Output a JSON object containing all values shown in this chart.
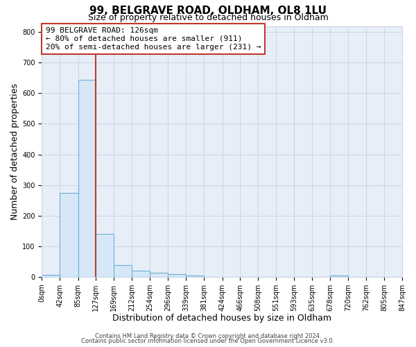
{
  "title": "99, BELGRAVE ROAD, OLDHAM, OL8 1LU",
  "subtitle": "Size of property relative to detached houses in Oldham",
  "xlabel": "Distribution of detached houses by size in Oldham",
  "ylabel": "Number of detached properties",
  "bar_edges": [
    0,
    42,
    85,
    127,
    169,
    212,
    254,
    296,
    339,
    381,
    424,
    466,
    508,
    551,
    593,
    635,
    678,
    720,
    762,
    805,
    847
  ],
  "bar_heights": [
    7,
    275,
    643,
    140,
    38,
    20,
    12,
    9,
    4,
    0,
    0,
    0,
    0,
    0,
    0,
    0,
    4,
    0,
    0,
    0
  ],
  "bar_color": "#d6e8f7",
  "bar_edge_color": "#6aaed6",
  "property_line_x": 127,
  "property_line_color": "#c0392b",
  "annotation_text_line1": "99 BELGRAVE ROAD: 126sqm",
  "annotation_text_line2": "← 80% of detached houses are smaller (911)",
  "annotation_text_line3": "20% of semi-detached houses are larger (231) →",
  "annotation_box_color": "#c0392b",
  "ylim": [
    0,
    820
  ],
  "yticks": [
    0,
    100,
    200,
    300,
    400,
    500,
    600,
    700,
    800
  ],
  "xtick_labels": [
    "0sqm",
    "42sqm",
    "85sqm",
    "127sqm",
    "169sqm",
    "212sqm",
    "254sqm",
    "296sqm",
    "339sqm",
    "381sqm",
    "424sqm",
    "466sqm",
    "508sqm",
    "551sqm",
    "593sqm",
    "635sqm",
    "678sqm",
    "720sqm",
    "762sqm",
    "805sqm",
    "847sqm"
  ],
  "grid_color": "#c8d4e8",
  "background_color": "#e8eef8",
  "footer_line1": "Contains HM Land Registry data © Crown copyright and database right 2024.",
  "footer_line2": "Contains public sector information licensed under the Open Government Licence v3.0.",
  "title_fontsize": 11,
  "subtitle_fontsize": 9,
  "axis_label_fontsize": 9,
  "tick_fontsize": 7,
  "annotation_fontsize": 8
}
